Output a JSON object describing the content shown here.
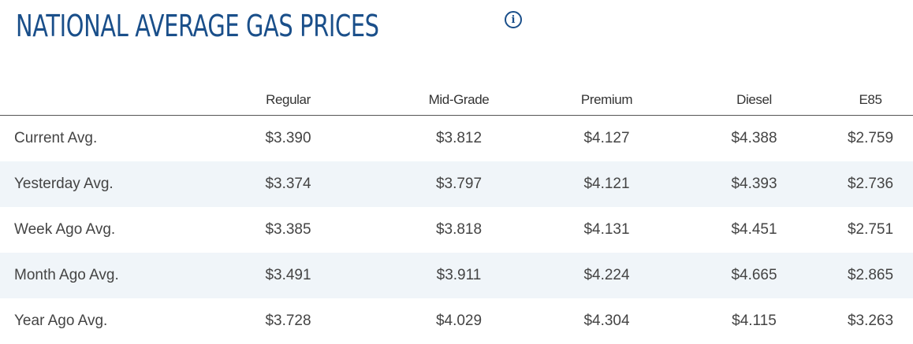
{
  "header": {
    "title": "NATIONAL AVERAGE GAS PRICES",
    "info_icon": "info-icon",
    "title_color": "#1a4f8a"
  },
  "table": {
    "columns": [
      "",
      "Regular",
      "Mid-Grade",
      "Premium",
      "Diesel",
      "E85"
    ],
    "rows": [
      {
        "label": "Current Avg.",
        "values": [
          "$3.390",
          "$3.812",
          "$4.127",
          "$4.388",
          "$2.759"
        ]
      },
      {
        "label": "Yesterday Avg.",
        "values": [
          "$3.374",
          "$3.797",
          "$4.121",
          "$4.393",
          "$2.736"
        ]
      },
      {
        "label": "Week Ago Avg.",
        "values": [
          "$3.385",
          "$3.818",
          "$4.131",
          "$4.451",
          "$2.751"
        ]
      },
      {
        "label": "Month Ago Avg.",
        "values": [
          "$3.491",
          "$3.911",
          "$4.224",
          "$4.665",
          "$2.865"
        ]
      },
      {
        "label": "Year Ago Avg.",
        "values": [
          "$3.728",
          "$4.029",
          "$4.304",
          "$4.115",
          "$3.263"
        ]
      }
    ],
    "stripe_color": "#f0f5f9"
  }
}
